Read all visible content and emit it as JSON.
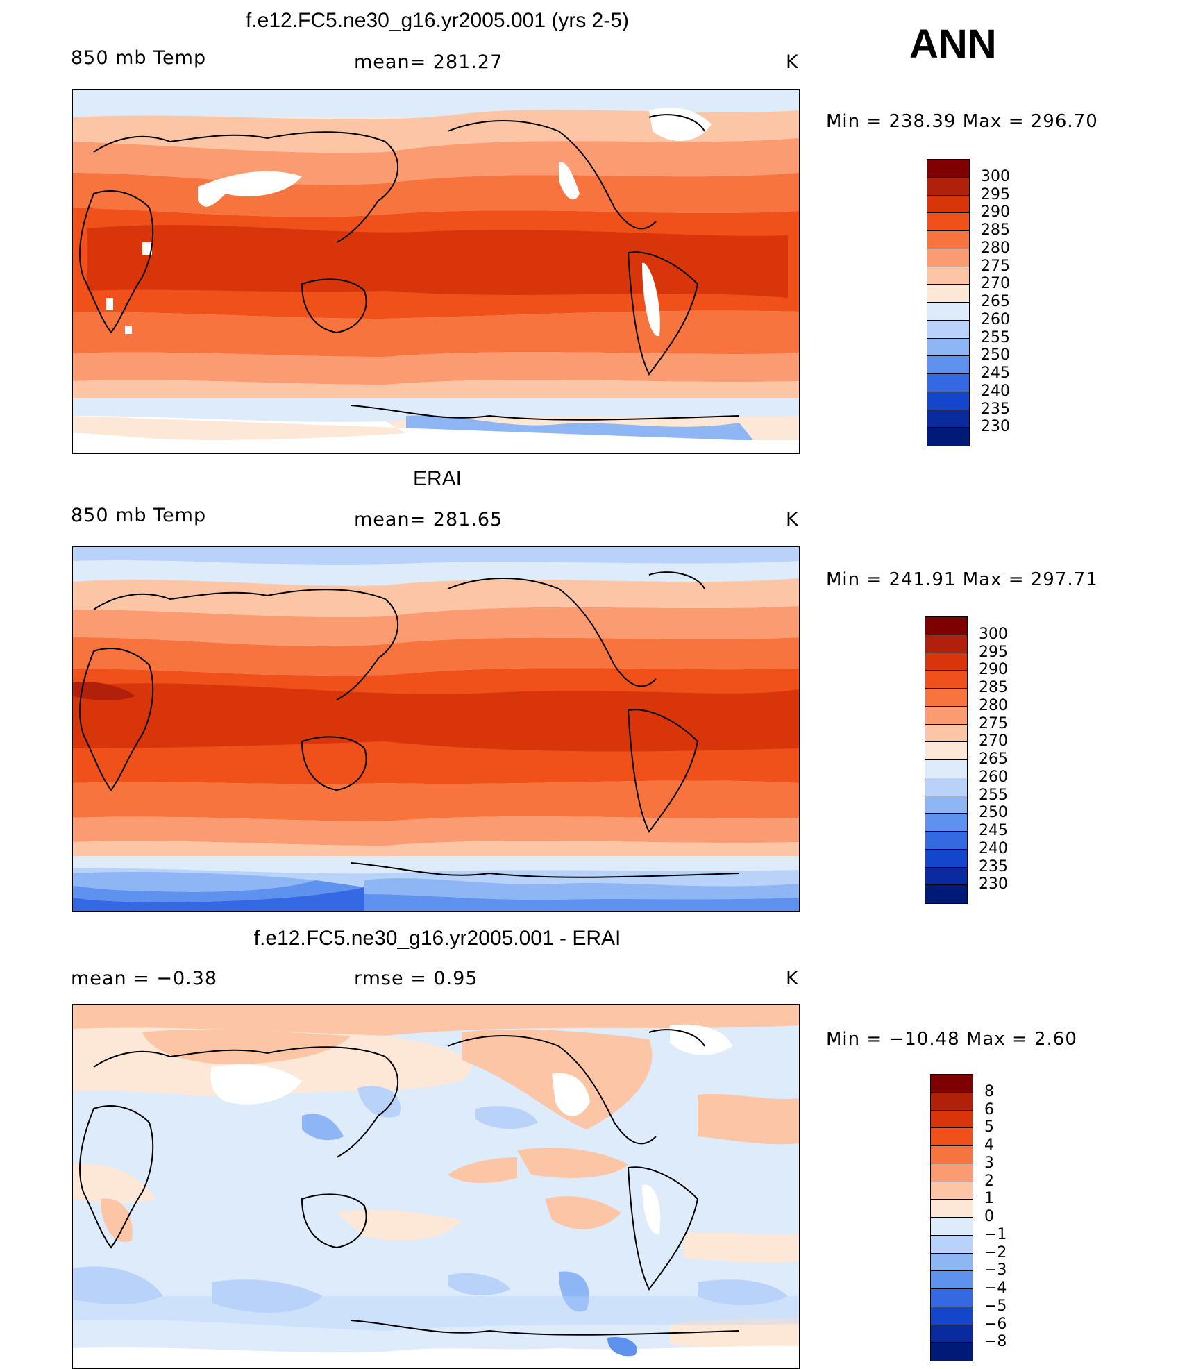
{
  "season": "ANN",
  "units": "K",
  "panels": [
    {
      "title": "f.e12.FC5.ne30_g16.yr2005.001 (yrs 2-5)",
      "left_label": "850 mb Temp",
      "center_label": "mean= 281.27",
      "min_max": "Min = 238.39 Max = 296.70"
    },
    {
      "title": "ERAI",
      "left_label": "850 mb Temp",
      "center_label": "mean= 281.65",
      "min_max": "Min = 241.91 Max = 297.71"
    },
    {
      "title": "f.e12.FC5.ne30_g16.yr2005.001 - ERAI",
      "left_label": "mean =    −0.38",
      "center_label": "rmse =     0.95",
      "min_max": "Min = −10.48 Max =     2.60"
    }
  ],
  "temp_colorbar": {
    "labels": [
      "300",
      "295",
      "290",
      "285",
      "280",
      "275",
      "270",
      "265",
      "260",
      "255",
      "250",
      "245",
      "240",
      "235",
      "230"
    ],
    "colors": [
      "#7f0000",
      "#b0200a",
      "#d8360a",
      "#f0501a",
      "#f8743e",
      "#fb9b72",
      "#fcc6a6",
      "#fde8d8",
      "#ddebfb",
      "#b9d2f9",
      "#8eb6f5",
      "#5e92ee",
      "#3569e4",
      "#1446cc",
      "#0a2aa0",
      "#001a78"
    ]
  },
  "diff_colorbar": {
    "labels": [
      "8",
      "6",
      "5",
      "4",
      "3",
      "2",
      "1",
      "0",
      "−1",
      "−2",
      "−3",
      "−4",
      "−5",
      "−6",
      "−8"
    ],
    "colors": [
      "#7f0000",
      "#b0200a",
      "#d8360a",
      "#f0501a",
      "#f8743e",
      "#fb9b72",
      "#fcc6a6",
      "#fde8d8",
      "#ddebfb",
      "#b9d2f9",
      "#8eb6f5",
      "#5e92ee",
      "#3569e4",
      "#1446cc",
      "#0a2aa0",
      "#001a78"
    ]
  }
}
